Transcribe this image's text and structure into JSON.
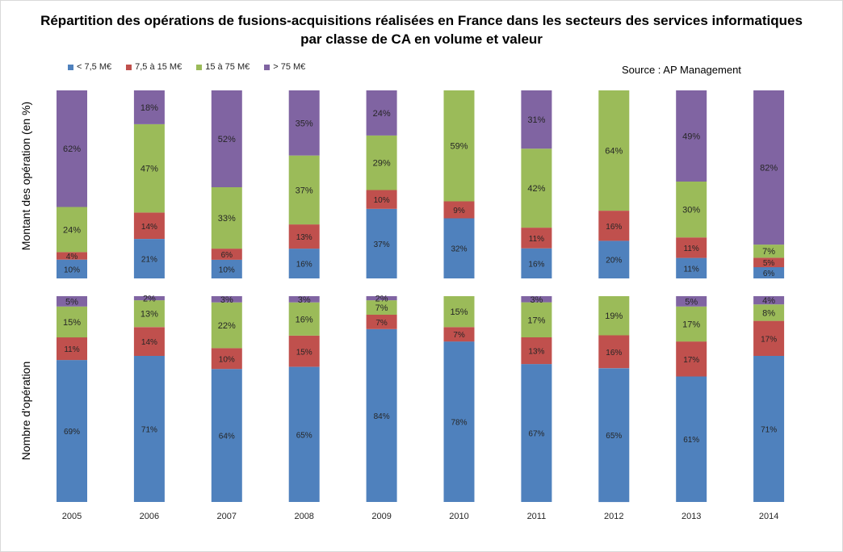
{
  "chart_title_line1": "Répartition des opérations de fusions-acquisitions réalisées en France dans les secteurs des services informatiques",
  "chart_title_line2": "par classe de CA en volume et valeur",
  "source": "Source : AP Management",
  "colors": {
    "lt_7_5": "#4f81bd",
    "7_5_15": "#c0504d",
    "15_75": "#9bbb59",
    "gt_75": "#8064a2"
  },
  "chart_data": [
    {
      "type": "bar",
      "stacked": true,
      "orientation": "vertical",
      "ylabel": "Montant des opération (en %)",
      "xlabel": "",
      "legend_position": "top-left",
      "categories": [
        "2005",
        "2006",
        "2007",
        "2008",
        "2009",
        "2010",
        "2011",
        "2012",
        "2013",
        "2014"
      ],
      "series": [
        {
          "name": "< 7,5 M€",
          "color": "#4f81bd",
          "values": [
            10,
            21,
            10,
            16,
            37,
            32,
            16,
            20,
            11,
            6
          ]
        },
        {
          "name": "7,5 à 15 M€",
          "color": "#c0504d",
          "values": [
            4,
            14,
            6,
            13,
            10,
            9,
            11,
            16,
            11,
            5
          ]
        },
        {
          "name": "15 à 75 M€",
          "color": "#9bbb59",
          "values": [
            24,
            47,
            33,
            37,
            29,
            59,
            42,
            64,
            30,
            7
          ]
        },
        {
          "name": "> 75 M€",
          "color": "#8064a2",
          "values": [
            62,
            18,
            52,
            35,
            24,
            0,
            31,
            0,
            49,
            82
          ]
        }
      ],
      "value_labels": [
        [
          "10%",
          "21%",
          "10%",
          "16%",
          "37%",
          "32%",
          "16%",
          "20%",
          "11%",
          "6%"
        ],
        [
          "4%",
          "14%",
          "6%",
          "13%",
          "10%",
          "9%",
          "11%",
          "16%",
          "11%",
          "5%"
        ],
        [
          "24%",
          "47%",
          "33%",
          "37%",
          "29%",
          "59%",
          "42%",
          "64%",
          "30%",
          "7%"
        ],
        [
          "62%",
          "18%",
          "52%",
          "35%",
          "24%",
          "",
          "31%",
          "",
          "49%",
          "82%"
        ]
      ]
    },
    {
      "type": "bar",
      "stacked": true,
      "orientation": "vertical",
      "ylabel": "Nombre d'opération",
      "xlabel": "",
      "categories": [
        "2005",
        "2006",
        "2007",
        "2008",
        "2009",
        "2010",
        "2011",
        "2012",
        "2013",
        "2014"
      ],
      "series": [
        {
          "name": "< 7,5 M€",
          "color": "#4f81bd",
          "values": [
            69,
            71,
            64,
            65,
            84,
            78,
            67,
            65,
            61,
            71
          ]
        },
        {
          "name": "7,5 à 15 M€",
          "color": "#c0504d",
          "values": [
            11,
            14,
            10,
            15,
            7,
            7,
            13,
            16,
            17,
            17
          ]
        },
        {
          "name": "15 à 75 M€",
          "color": "#9bbb59",
          "values": [
            15,
            13,
            22,
            16,
            7,
            15,
            17,
            19,
            17,
            8
          ]
        },
        {
          "name": "> 75 M€",
          "color": "#8064a2",
          "values": [
            5,
            2,
            3,
            3,
            2,
            0,
            3,
            0,
            5,
            4
          ]
        }
      ],
      "value_labels": [
        [
          "69%",
          "71%",
          "64%",
          "65%",
          "84%",
          "78%",
          "67%",
          "65%",
          "61%",
          "71%"
        ],
        [
          "11%",
          "14%",
          "10%",
          "15%",
          "7%",
          "7%",
          "13%",
          "16%",
          "17%",
          "17%"
        ],
        [
          "15%",
          "13%",
          "22%",
          "16%",
          "7%",
          "15%",
          "17%",
          "19%",
          "17%",
          "8%"
        ],
        [
          "5%",
          "2%",
          "3%",
          "3%",
          "2%",
          "",
          "3%",
          "",
          "5%",
          "4%"
        ]
      ]
    }
  ]
}
